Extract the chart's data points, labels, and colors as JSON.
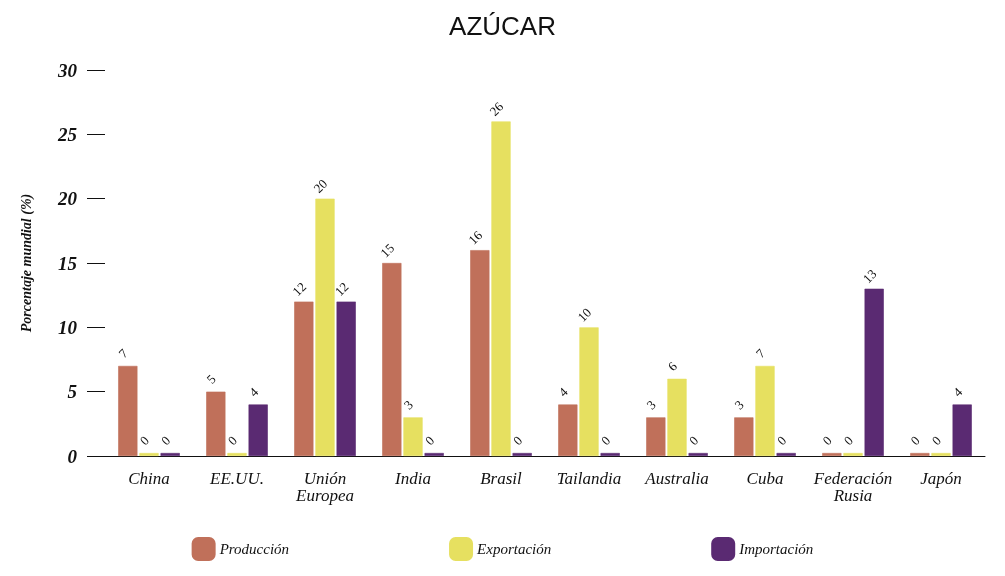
{
  "chart_data": {
    "type": "bar",
    "title": "AZÚCAR",
    "ylabel": "Porcentaje mundial (%)",
    "categories": [
      "China",
      "EE.UU.",
      "Unión Europea",
      "India",
      "Brasil",
      "Tailandia",
      "Australia",
      "Cuba",
      "Federación Rusia",
      "Japón"
    ],
    "series": [
      {
        "name": "Producción",
        "color": "#c0705a",
        "values": [
          7,
          5,
          12,
          15,
          16,
          4,
          3,
          3,
          0,
          0
        ]
      },
      {
        "name": "Exportación",
        "color": "#e6e060",
        "values": [
          0,
          0,
          20,
          3,
          26,
          10,
          6,
          7,
          0,
          0
        ]
      },
      {
        "name": "Importación",
        "color": "#5a2a72",
        "values": [
          0,
          4,
          12,
          0,
          0,
          0,
          0,
          0,
          13,
          4
        ]
      }
    ],
    "ylim": [
      0,
      30
    ],
    "yticks": [
      0,
      5,
      10,
      15,
      20,
      25,
      30
    ],
    "grid": false,
    "legend": "bottom",
    "data_labels": true
  }
}
